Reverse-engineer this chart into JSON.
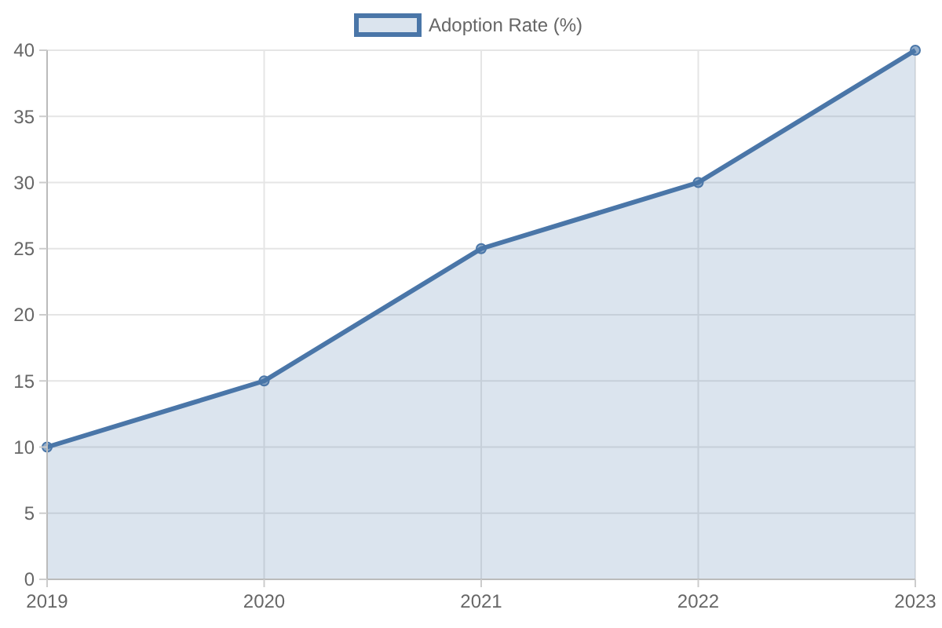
{
  "chart_data": {
    "type": "area",
    "categories": [
      "2019",
      "2020",
      "2021",
      "2022",
      "2023"
    ],
    "series": [
      {
        "name": "Adoption Rate (%)",
        "color": "#4a76a8",
        "values": [
          10,
          15,
          25,
          30,
          40
        ]
      }
    ],
    "ylim": [
      0,
      40
    ],
    "yticks": [
      0,
      5,
      10,
      15,
      20,
      25,
      30,
      35,
      40
    ],
    "grid": true,
    "legend": "top",
    "marker": "circle",
    "line_style": "solid"
  }
}
